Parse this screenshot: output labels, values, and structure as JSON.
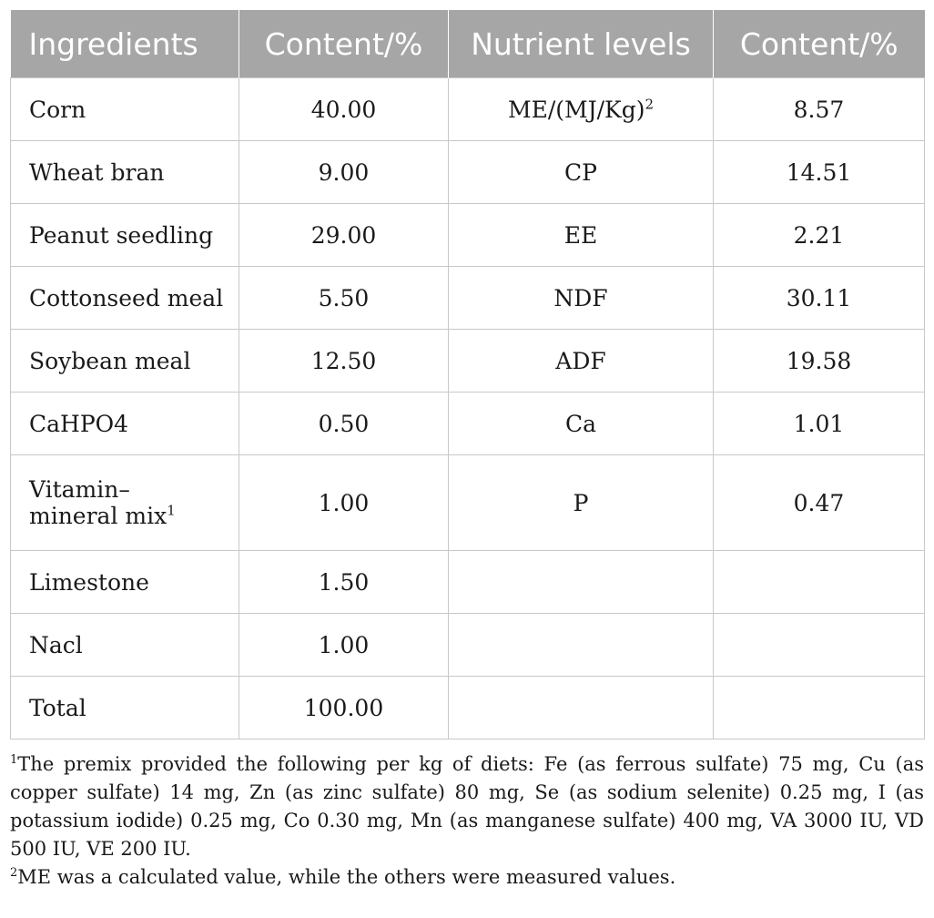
{
  "table": {
    "headers": [
      "Ingredients",
      "Content/%",
      "Nutrient levels",
      "Content/%"
    ],
    "rows": [
      {
        "ingredient": "Corn",
        "content": "40.00",
        "nutrient": "ME/(MJ/Kg)",
        "nutrient_sup": "2",
        "nutrient_content": "8.57"
      },
      {
        "ingredient": "Wheat bran",
        "content": "9.00",
        "nutrient": "CP",
        "nutrient_content": "14.51"
      },
      {
        "ingredient": "Peanut seedling",
        "content": "29.00",
        "nutrient": "EE",
        "nutrient_content": "2.21"
      },
      {
        "ingredient": "Cottonseed meal",
        "content": "5.50",
        "nutrient": "NDF",
        "nutrient_content": "30.11"
      },
      {
        "ingredient": "Soybean meal",
        "content": "12.50",
        "nutrient": "ADF",
        "nutrient_content": "19.58"
      },
      {
        "ingredient": "CaHPO4",
        "content": "0.50",
        "nutrient": "Ca",
        "nutrient_content": "1.01"
      },
      {
        "ingredient_line1": "Vitamin–",
        "ingredient_line2": "mineral mix",
        "ingredient_sup": "1",
        "content": "1.00",
        "nutrient": "P",
        "nutrient_content": "0.47"
      },
      {
        "ingredient": "Limestone",
        "content": "1.50",
        "nutrient": "",
        "nutrient_content": ""
      },
      {
        "ingredient": "Nacl",
        "content": "1.00",
        "nutrient": "",
        "nutrient_content": ""
      },
      {
        "ingredient": "Total",
        "content": "100.00",
        "nutrient": "",
        "nutrient_content": ""
      }
    ]
  },
  "footnotes": [
    {
      "marker": "1",
      "text": "The premix provided the following per kg of diets: Fe (as ferrous sulfate) 75 mg, Cu (as copper sulfate) 14 mg, Zn (as zinc sulfate) 80 mg, Se (as sodium selenite) 0.25 mg, I (as potassium iodide) 0.25 mg, Co 0.30 mg, Mn (as manganese sulfate) 400 mg, VA 3000 IU, VD 500 IU, VE 200 IU."
    },
    {
      "marker": "2",
      "text": "ME was a calculated value, while the others were measured values."
    }
  ]
}
